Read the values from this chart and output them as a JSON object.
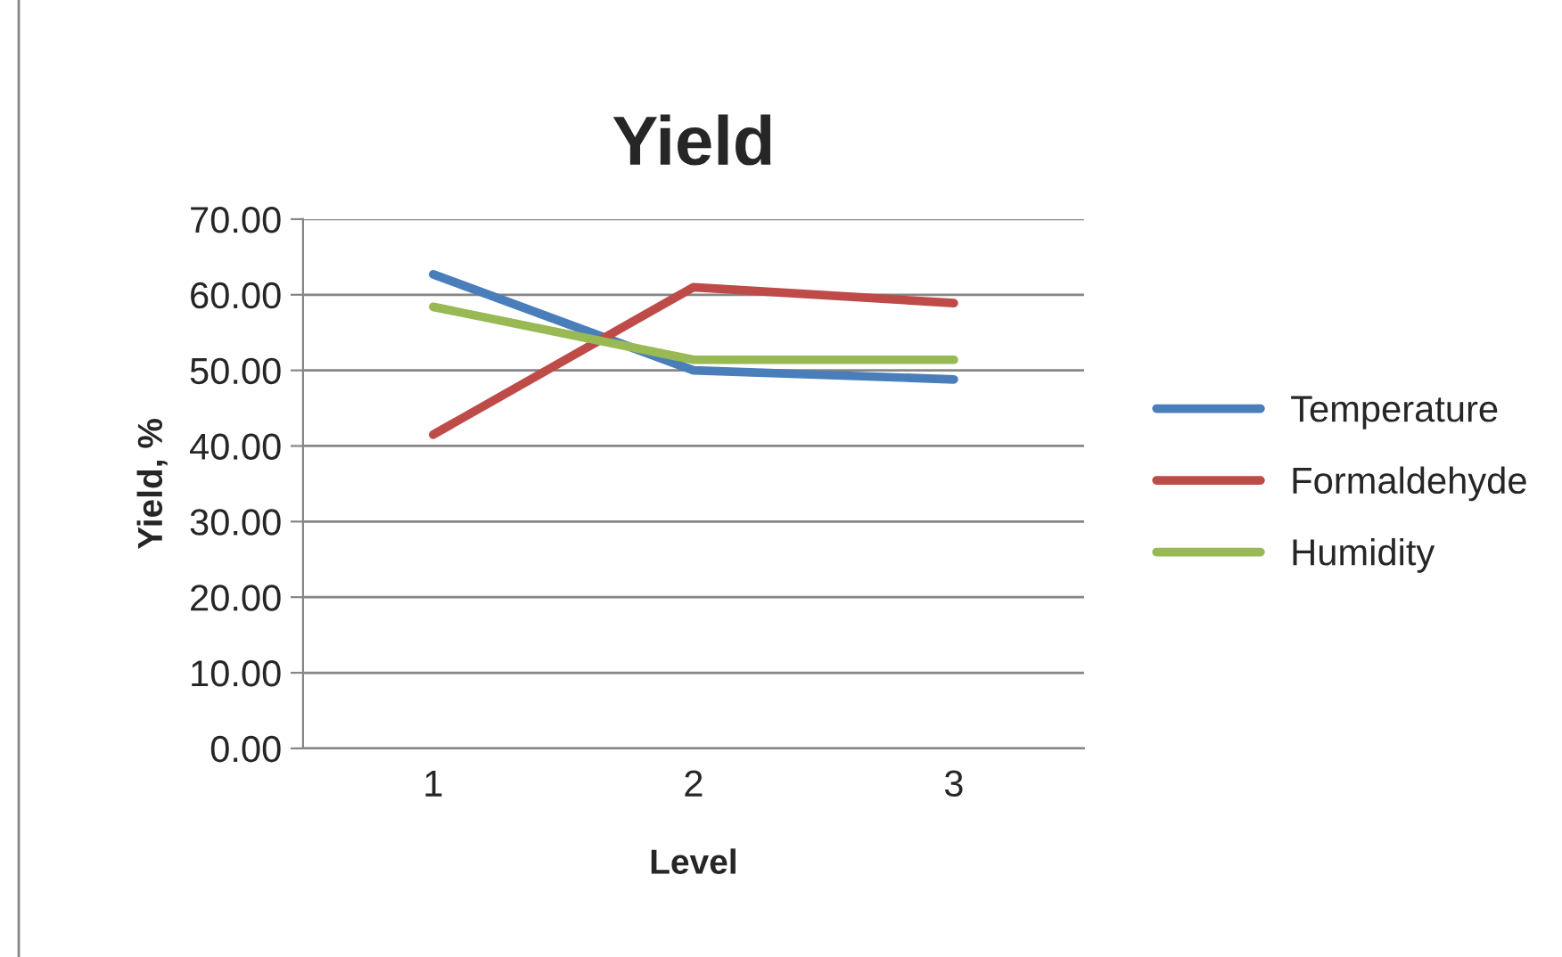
{
  "chart_data": {
    "type": "line",
    "title": "Yield",
    "xlabel": "Level",
    "ylabel": "Yield, %",
    "categories": [
      "1",
      "2",
      "3"
    ],
    "series": [
      {
        "name": "Temperature",
        "color": "#4a7ebb",
        "values": [
          62.7,
          50.0,
          48.8
        ]
      },
      {
        "name": "Formaldehyde",
        "color": "#be4b48",
        "values": [
          41.5,
          61.0,
          58.9
        ]
      },
      {
        "name": "Humidity",
        "color": "#98b954",
        "values": [
          58.4,
          51.4,
          51.4
        ]
      }
    ],
    "ylim": [
      0,
      70
    ],
    "yticks": [
      {
        "value": 0,
        "label": "0.00"
      },
      {
        "value": 10,
        "label": "10.00"
      },
      {
        "value": 20,
        "label": "20.00"
      },
      {
        "value": 30,
        "label": "30.00"
      },
      {
        "value": 40,
        "label": "40.00"
      },
      {
        "value": 50,
        "label": "50.00"
      },
      {
        "value": 60,
        "label": "60.00"
      },
      {
        "value": 70,
        "label": "70.00"
      }
    ],
    "grid": "y",
    "legend": "right",
    "marker": "none",
    "line_style": "solid"
  }
}
